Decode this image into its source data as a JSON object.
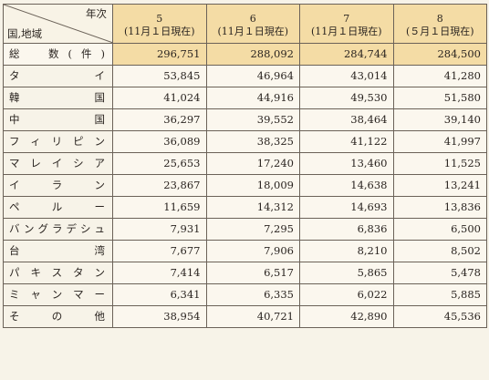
{
  "corner": {
    "top_right": "年次",
    "bottom_left": "国,地域"
  },
  "columns": [
    {
      "year": "5",
      "note": "(11月１日現在)"
    },
    {
      "year": "6",
      "note": "(11月１日現在)"
    },
    {
      "year": "7",
      "note": "(11月１日現在)"
    },
    {
      "year": "8",
      "note": "(５月１日現在)"
    }
  ],
  "rows": [
    {
      "label": "総　数(件)",
      "values": [
        "296,751",
        "288,092",
        "284,744",
        "284,500"
      ]
    },
    {
      "label": "タ　イ",
      "values": [
        "53,845",
        "46,964",
        "43,014",
        "41,280"
      ]
    },
    {
      "label": "韓　国",
      "values": [
        "41,024",
        "44,916",
        "49,530",
        "51,580"
      ]
    },
    {
      "label": "中　国",
      "values": [
        "36,297",
        "39,552",
        "38,464",
        "39,140"
      ]
    },
    {
      "label": "フィリピン",
      "values": [
        "36,089",
        "38,325",
        "41,122",
        "41,997"
      ]
    },
    {
      "label": "マレイシア",
      "values": [
        "25,653",
        "17,240",
        "13,460",
        "11,525"
      ]
    },
    {
      "label": "イラン",
      "values": [
        "23,867",
        "18,009",
        "14,638",
        "13,241"
      ]
    },
    {
      "label": "ペルー",
      "values": [
        "11,659",
        "14,312",
        "14,693",
        "13,836"
      ]
    },
    {
      "label": "バングラデシュ",
      "values": [
        "7,931",
        "7,295",
        "6,836",
        "6,500"
      ]
    },
    {
      "label": "台　湾",
      "values": [
        "7,677",
        "7,906",
        "8,210",
        "8,502"
      ]
    },
    {
      "label": "パキスタン",
      "values": [
        "7,414",
        "6,517",
        "5,865",
        "5,478"
      ]
    },
    {
      "label": "ミャンマー",
      "values": [
        "6,341",
        "6,335",
        "6,022",
        "5,885"
      ]
    },
    {
      "label": "そ　の　他",
      "values": [
        "38,954",
        "40,721",
        "42,890",
        "45,536"
      ]
    }
  ]
}
